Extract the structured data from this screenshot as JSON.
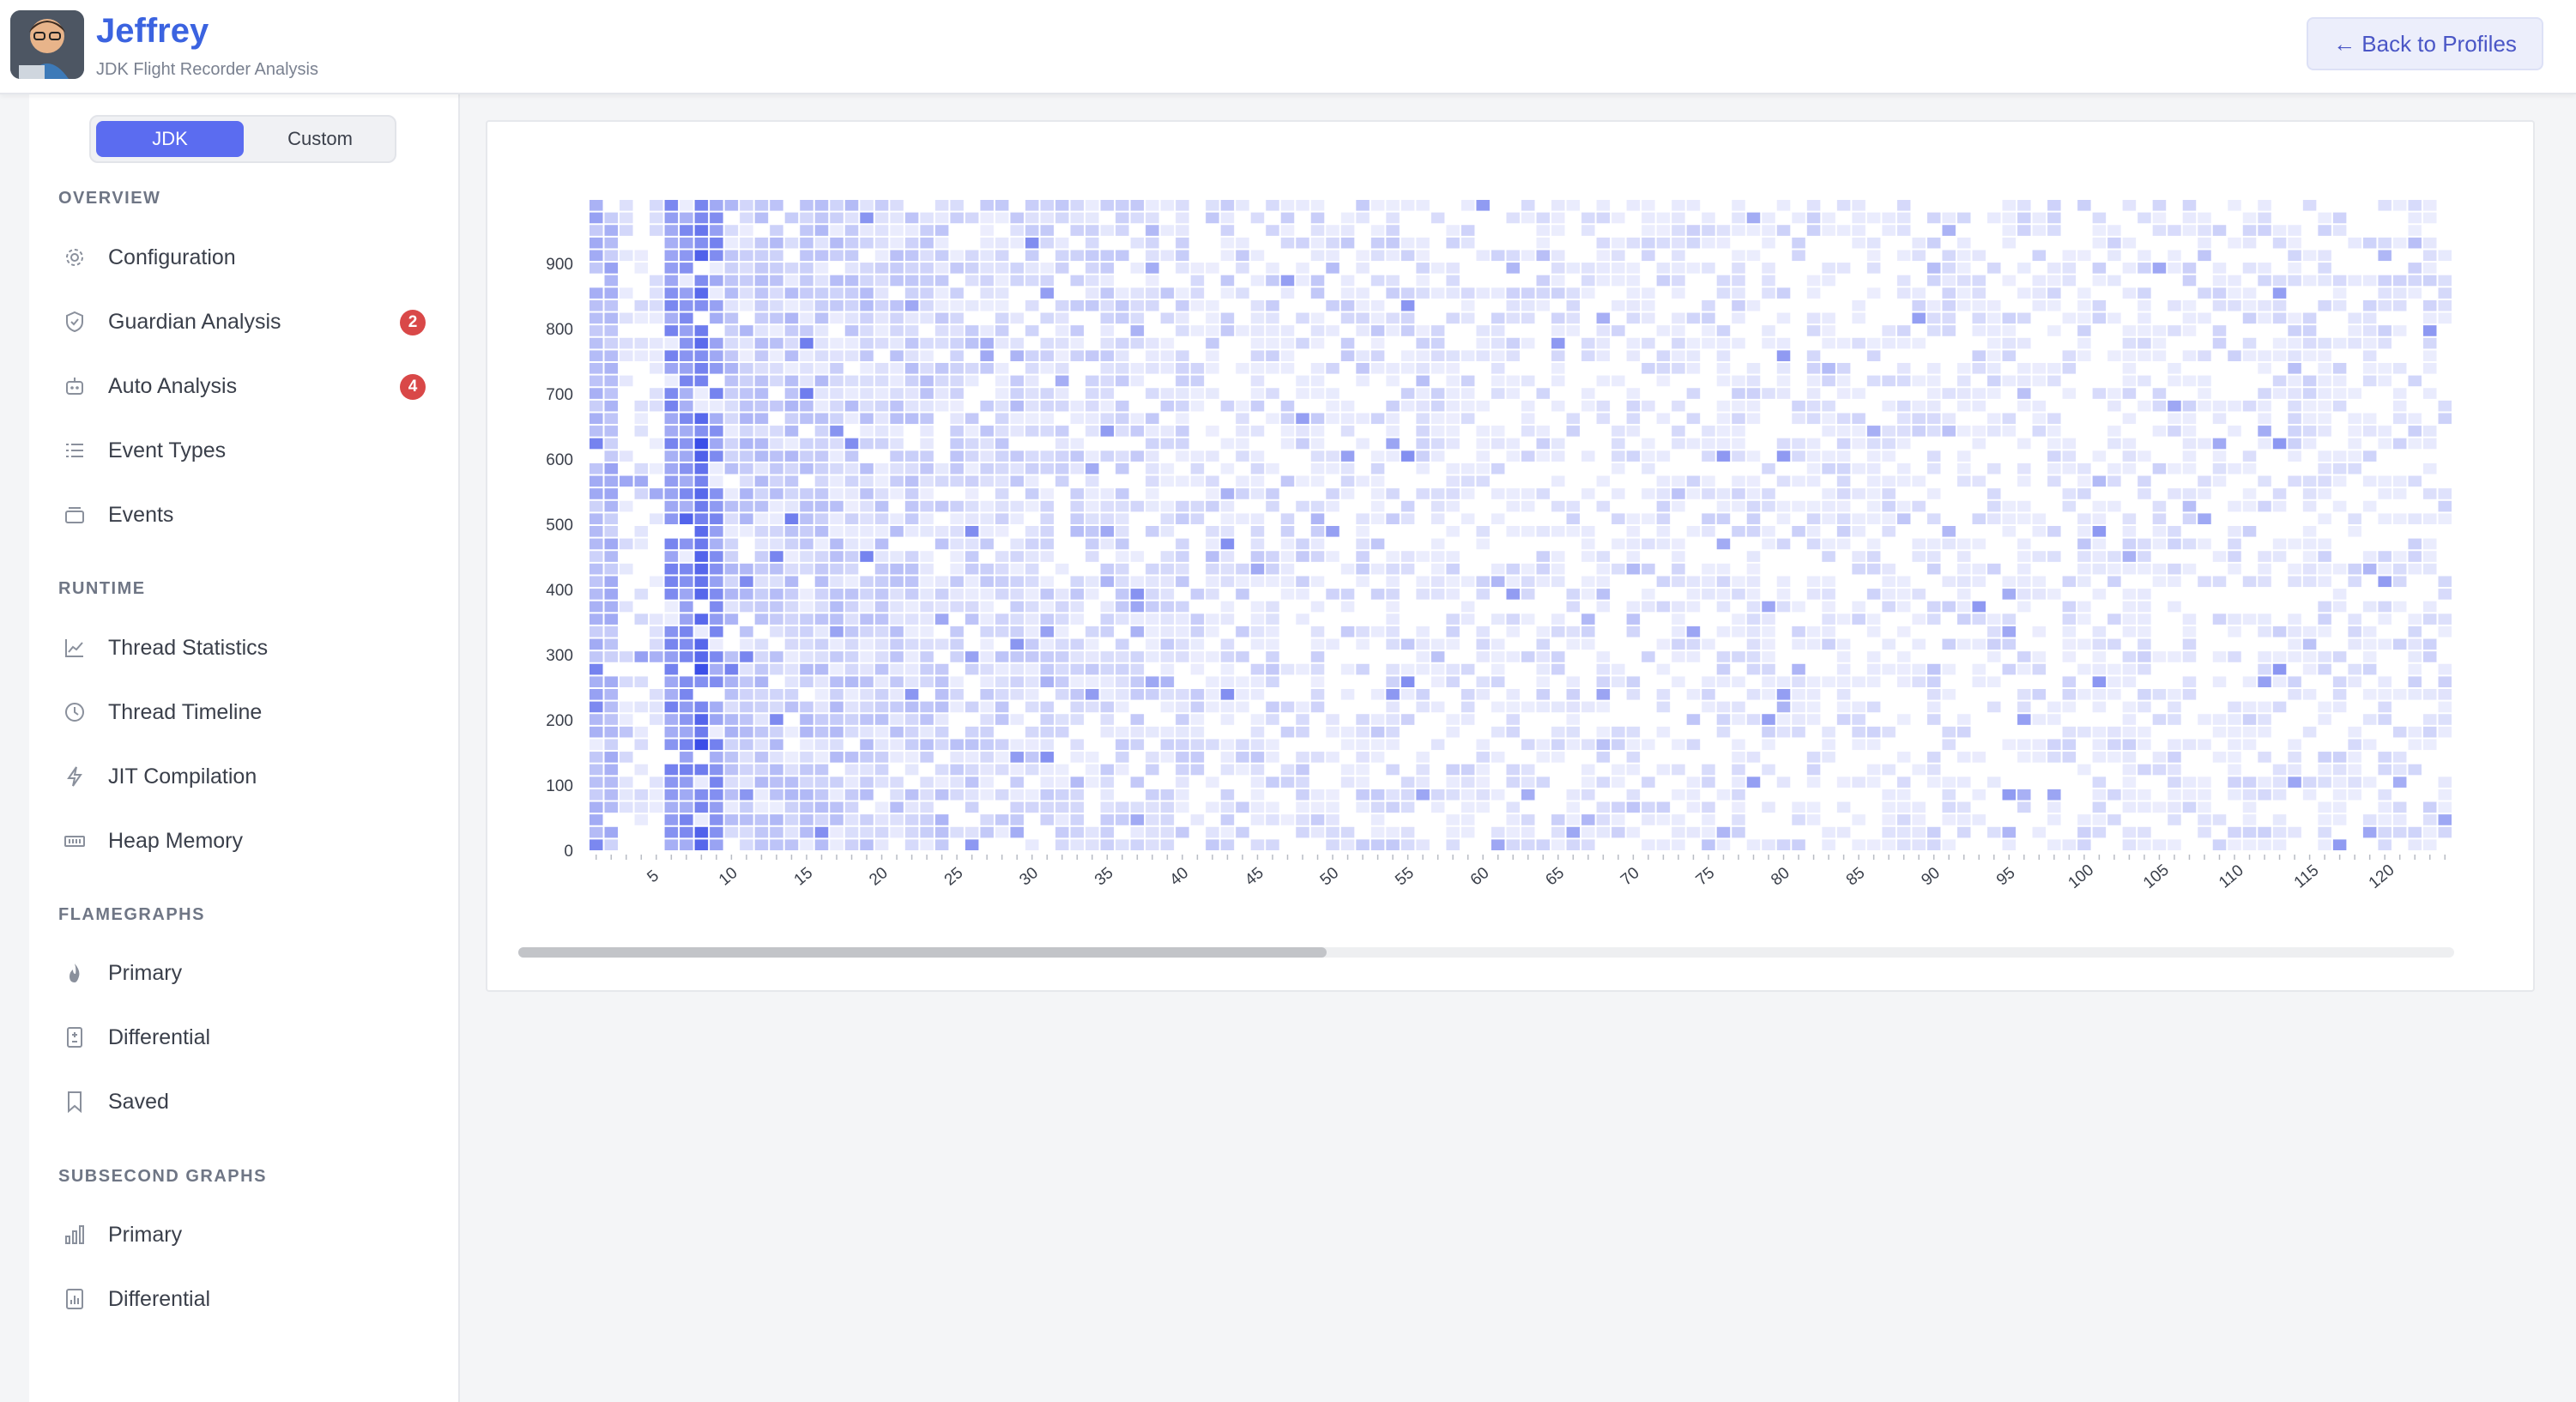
{
  "header": {
    "title": "Jeffrey",
    "subtitle": "JDK Flight Recorder Analysis",
    "back_label": "← Back to Profiles"
  },
  "sidebar": {
    "toggle": {
      "active": "JDK",
      "other": "Custom"
    },
    "sections": [
      {
        "label": "OVERVIEW",
        "items": [
          {
            "label": "Configuration",
            "icon": "gear-icon"
          },
          {
            "label": "Guardian Analysis",
            "icon": "shield-icon",
            "badge": "2"
          },
          {
            "label": "Auto Analysis",
            "icon": "robot-icon",
            "badge": "4"
          },
          {
            "label": "Event Types",
            "icon": "list-icon"
          },
          {
            "label": "Events",
            "icon": "inbox-icon"
          }
        ]
      },
      {
        "label": "RUNTIME",
        "items": [
          {
            "label": "Thread Statistics",
            "icon": "line-chart-icon"
          },
          {
            "label": "Thread Timeline",
            "icon": "clock-icon"
          },
          {
            "label": "JIT Compilation",
            "icon": "lightning-icon"
          },
          {
            "label": "Heap Memory",
            "icon": "memory-icon"
          }
        ]
      },
      {
        "label": "FLAMEGRAPHS",
        "items": [
          {
            "label": "Primary",
            "icon": "flame-icon"
          },
          {
            "label": "Differential",
            "icon": "diff-file-icon"
          },
          {
            "label": "Saved",
            "icon": "bookmark-icon"
          }
        ]
      },
      {
        "label": "SUBSECOND GRAPHS",
        "items": [
          {
            "label": "Primary",
            "icon": "bar-chart-icon"
          },
          {
            "label": "Differential",
            "icon": "bar-chart-file-icon"
          }
        ]
      }
    ]
  },
  "chart_data": {
    "type": "heatmap",
    "title": "",
    "xlabel": "",
    "ylabel": "",
    "x_ticks": [
      5,
      10,
      15,
      20,
      25,
      30,
      35,
      40,
      45,
      50,
      55,
      60,
      65,
      70,
      75,
      80,
      85,
      90,
      95,
      100,
      105,
      110,
      115,
      120
    ],
    "y_ticks": [
      0,
      100,
      200,
      300,
      400,
      500,
      600,
      700,
      800,
      900
    ],
    "x_range": [
      1,
      124
    ],
    "y_range": [
      0,
      999
    ],
    "color_low": "#f3f4fe",
    "color_high": "#3b4ee8",
    "note_visible_values": "intensity per cell visible as color only; darkest columns near x≈7-8"
  },
  "scrollbar": {
    "position_fraction": 0.0,
    "visible_fraction": 0.42
  }
}
